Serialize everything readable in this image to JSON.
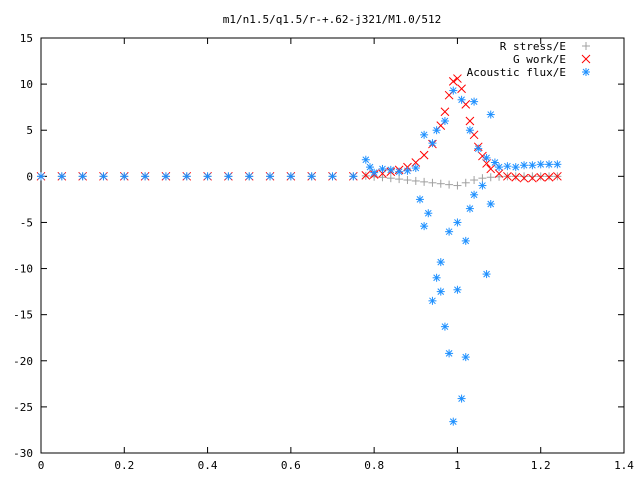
{
  "chart_data": {
    "type": "scatter",
    "title": "m1/n1.5/q1.5/r-+.62-j321/M1.0/512",
    "xlabel": "",
    "ylabel": "",
    "xlim": [
      0,
      1.4
    ],
    "ylim": [
      -30,
      15
    ],
    "x_ticks": [
      0,
      0.2,
      0.4,
      0.6,
      0.8,
      1,
      1.2,
      1.4
    ],
    "x_tick_labels": [
      "0",
      "0.2",
      "0.4",
      "0.6",
      "0.8",
      "1",
      "1.2",
      "1.4"
    ],
    "y_ticks": [
      15,
      10,
      5,
      0,
      -5,
      -10,
      -15,
      -20,
      -25,
      -30
    ],
    "y_tick_labels": [
      "15",
      "10",
      "5",
      "0",
      "-5",
      "-10",
      "-15",
      "-20",
      "-25",
      "-30"
    ],
    "grid": false,
    "legend_position": "top-right",
    "series": [
      {
        "name": "R stress/E",
        "marker": "+",
        "color": "#a0a0a0",
        "points": [
          [
            0.0,
            0.0
          ],
          [
            0.05,
            0.0
          ],
          [
            0.1,
            0.0
          ],
          [
            0.15,
            0.0
          ],
          [
            0.2,
            0.0
          ],
          [
            0.25,
            0.0
          ],
          [
            0.3,
            0.0
          ],
          [
            0.35,
            0.0
          ],
          [
            0.4,
            0.0
          ],
          [
            0.45,
            0.0
          ],
          [
            0.5,
            0.0
          ],
          [
            0.55,
            0.0
          ],
          [
            0.6,
            0.0
          ],
          [
            0.65,
            0.0
          ],
          [
            0.7,
            0.0
          ],
          [
            0.75,
            0.0
          ],
          [
            0.78,
            0.05
          ],
          [
            0.8,
            -0.05
          ],
          [
            0.82,
            -0.1
          ],
          [
            0.84,
            -0.2
          ],
          [
            0.86,
            -0.3
          ],
          [
            0.88,
            -0.4
          ],
          [
            0.9,
            -0.5
          ],
          [
            0.92,
            -0.6
          ],
          [
            0.94,
            -0.7
          ],
          [
            0.96,
            -0.8
          ],
          [
            0.98,
            -0.9
          ],
          [
            1.0,
            -1.0
          ],
          [
            1.02,
            -0.7
          ],
          [
            1.04,
            -0.4
          ],
          [
            1.06,
            -0.2
          ],
          [
            1.08,
            -0.1
          ],
          [
            1.1,
            -0.05
          ],
          [
            1.12,
            0.0
          ],
          [
            1.14,
            0.0
          ],
          [
            1.16,
            0.0
          ],
          [
            1.18,
            0.0
          ],
          [
            1.2,
            0.0
          ],
          [
            1.22,
            0.0
          ],
          [
            1.24,
            0.0
          ]
        ]
      },
      {
        "name": "G work/E",
        "marker": "x",
        "color": "#ff0000",
        "points": [
          [
            0.0,
            0.0
          ],
          [
            0.05,
            0.0
          ],
          [
            0.1,
            0.0
          ],
          [
            0.15,
            0.0
          ],
          [
            0.2,
            0.0
          ],
          [
            0.25,
            0.0
          ],
          [
            0.3,
            0.0
          ],
          [
            0.35,
            0.0
          ],
          [
            0.4,
            0.0
          ],
          [
            0.45,
            0.0
          ],
          [
            0.5,
            0.0
          ],
          [
            0.55,
            0.0
          ],
          [
            0.6,
            0.0
          ],
          [
            0.65,
            0.0
          ],
          [
            0.7,
            0.0
          ],
          [
            0.75,
            0.0
          ],
          [
            0.78,
            0.1
          ],
          [
            0.8,
            0.2
          ],
          [
            0.82,
            0.3
          ],
          [
            0.84,
            0.5
          ],
          [
            0.86,
            0.7
          ],
          [
            0.88,
            1.0
          ],
          [
            0.9,
            1.5
          ],
          [
            0.92,
            2.3
          ],
          [
            0.94,
            3.5
          ],
          [
            0.96,
            5.5
          ],
          [
            0.97,
            7.0
          ],
          [
            0.98,
            8.8
          ],
          [
            0.99,
            10.3
          ],
          [
            1.0,
            10.6
          ],
          [
            1.01,
            9.5
          ],
          [
            1.02,
            7.8
          ],
          [
            1.03,
            6.0
          ],
          [
            1.04,
            4.5
          ],
          [
            1.05,
            3.2
          ],
          [
            1.06,
            2.2
          ],
          [
            1.07,
            1.4
          ],
          [
            1.08,
            0.8
          ],
          [
            1.1,
            0.3
          ],
          [
            1.12,
            0.0
          ],
          [
            1.14,
            -0.1
          ],
          [
            1.16,
            -0.2
          ],
          [
            1.18,
            -0.2
          ],
          [
            1.2,
            -0.1
          ],
          [
            1.22,
            -0.1
          ],
          [
            1.24,
            0.0
          ]
        ]
      },
      {
        "name": "Acoustic flux/E",
        "marker": "*",
        "color": "#1e90ff",
        "points": [
          [
            0.0,
            0.0
          ],
          [
            0.05,
            0.0
          ],
          [
            0.1,
            0.0
          ],
          [
            0.15,
            0.0
          ],
          [
            0.2,
            0.0
          ],
          [
            0.25,
            0.0
          ],
          [
            0.3,
            0.0
          ],
          [
            0.35,
            0.0
          ],
          [
            0.4,
            0.0
          ],
          [
            0.45,
            0.0
          ],
          [
            0.5,
            0.0
          ],
          [
            0.55,
            0.0
          ],
          [
            0.6,
            0.0
          ],
          [
            0.65,
            0.0
          ],
          [
            0.7,
            0.0
          ],
          [
            0.75,
            0.0
          ],
          [
            0.78,
            1.8
          ],
          [
            0.79,
            1.0
          ],
          [
            0.8,
            0.4
          ],
          [
            0.82,
            0.8
          ],
          [
            0.84,
            0.7
          ],
          [
            0.86,
            0.5
          ],
          [
            0.88,
            0.6
          ],
          [
            0.9,
            0.9
          ],
          [
            0.91,
            -2.5
          ],
          [
            0.92,
            4.5
          ],
          [
            0.92,
            -5.4
          ],
          [
            0.93,
            -4.0
          ],
          [
            0.94,
            -13.5
          ],
          [
            0.94,
            3.6
          ],
          [
            0.95,
            -11.0
          ],
          [
            0.95,
            5.0
          ],
          [
            0.96,
            -12.5
          ],
          [
            0.96,
            -9.3
          ],
          [
            0.97,
            -16.3
          ],
          [
            0.97,
            6.0
          ],
          [
            0.98,
            -19.2
          ],
          [
            0.98,
            -6.0
          ],
          [
            0.99,
            -26.6
          ],
          [
            0.99,
            9.3
          ],
          [
            1.0,
            -12.3
          ],
          [
            1.0,
            -5.0
          ],
          [
            1.01,
            -24.1
          ],
          [
            1.01,
            8.3
          ],
          [
            1.02,
            -19.6
          ],
          [
            1.02,
            -7.0
          ],
          [
            1.03,
            5.0
          ],
          [
            1.03,
            -3.5
          ],
          [
            1.04,
            8.1
          ],
          [
            1.04,
            -2.0
          ],
          [
            1.05,
            3.0
          ],
          [
            1.06,
            -1.0
          ],
          [
            1.07,
            2.0
          ],
          [
            1.07,
            -10.6
          ],
          [
            1.08,
            6.7
          ],
          [
            1.08,
            -3.0
          ],
          [
            1.09,
            1.5
          ],
          [
            1.1,
            1.0
          ],
          [
            1.12,
            1.1
          ],
          [
            1.14,
            1.0
          ],
          [
            1.16,
            1.2
          ],
          [
            1.18,
            1.2
          ],
          [
            1.2,
            1.3
          ],
          [
            1.22,
            1.3
          ],
          [
            1.24,
            1.3
          ]
        ]
      }
    ]
  }
}
